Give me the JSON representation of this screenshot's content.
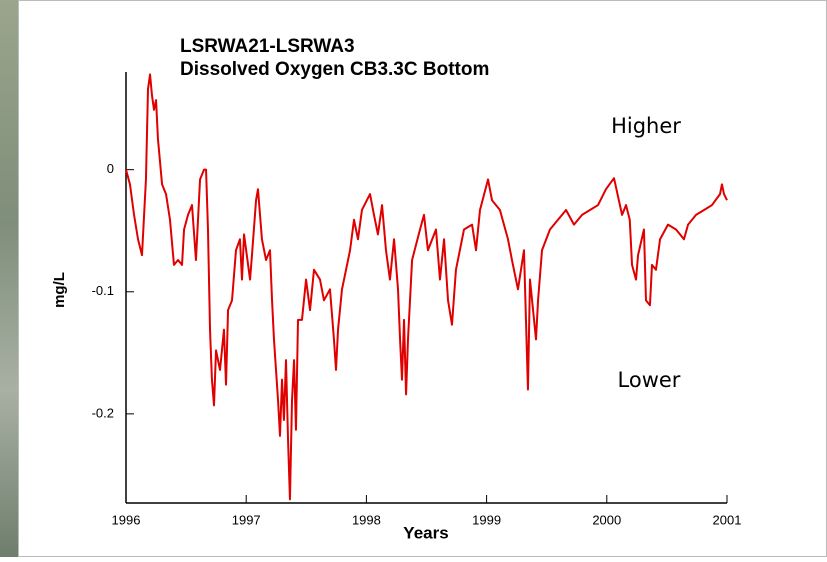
{
  "chart_data": {
    "type": "line",
    "title": "LSRWA21-LSRWA3",
    "subtitle": "Dissolved Oxygen CB3.3C Bottom",
    "xlabel": "Years",
    "ylabel": "mg/L",
    "annotations": [
      "Higher",
      "Lower"
    ],
    "color": "#e00000",
    "xlim": [
      1996,
      2001
    ],
    "xticks": [
      1996,
      1997,
      1998,
      1999,
      2000,
      2001
    ],
    "ylim": [
      -0.273,
      0.08
    ],
    "yticks": [
      -0.2,
      -0.1,
      0
    ],
    "x": [
      1996.0,
      1996.033,
      1996.067,
      1996.1,
      1996.133,
      1996.166,
      1996.183,
      1996.2,
      1996.216,
      1996.233,
      1996.25,
      1996.266,
      1996.3,
      1996.333,
      1996.366,
      1996.399,
      1996.433,
      1996.466,
      1996.483,
      1996.516,
      1996.549,
      1996.582,
      1996.616,
      1996.649,
      1996.666,
      1996.682,
      1996.699,
      1996.715,
      1996.732,
      1996.749,
      1996.782,
      1996.815,
      1996.832,
      1996.849,
      1996.882,
      1996.915,
      1996.948,
      1996.965,
      1996.982,
      1997.032,
      1997.048,
      1997.082,
      1997.098,
      1997.131,
      1997.165,
      1997.198,
      1997.215,
      1997.231,
      1997.248,
      1997.265,
      1997.281,
      1997.298,
      1997.314,
      1997.331,
      1997.348,
      1997.364,
      1997.381,
      1997.398,
      1997.414,
      1997.431,
      1997.464,
      1997.498,
      1997.531,
      1997.564,
      1997.614,
      1997.647,
      1997.697,
      1997.73,
      1997.747,
      1997.764,
      1997.797,
      1997.864,
      1997.897,
      1997.93,
      1997.963,
      1998.03,
      1998.063,
      1998.096,
      1998.13,
      1998.163,
      1998.196,
      1998.23,
      1998.263,
      1998.28,
      1998.296,
      1998.313,
      1998.33,
      1998.346,
      1998.38,
      1998.446,
      1998.479,
      1998.512,
      1998.579,
      1998.612,
      1998.646,
      1998.679,
      1998.712,
      1998.745,
      1998.812,
      1998.879,
      1998.912,
      1998.945,
      1999.012,
      1999.045,
      1999.111,
      1999.178,
      1999.211,
      1999.261,
      1999.311,
      1999.344,
      1999.361,
      1999.411,
      1999.428,
      1999.461,
      1999.527,
      1999.594,
      1999.661,
      1999.727,
      1999.794,
      1999.86,
      1999.927,
      1999.993,
      2000.06,
      2000.127,
      2000.16,
      2000.191,
      2000.21,
      2000.243,
      2000.26,
      2000.309,
      2000.326,
      2000.359,
      2000.376,
      2000.409,
      2000.443,
      2000.509,
      2000.576,
      2000.642,
      2000.676,
      2000.742,
      2000.809,
      2000.875,
      2000.942,
      2000.958,
      2000.975,
      2001.0
    ],
    "values": [
      0,
      -0.012,
      -0.037,
      -0.057,
      -0.07,
      -0.008,
      0.066,
      0.078,
      0.061,
      0.049,
      0.057,
      0.025,
      -0.012,
      -0.02,
      -0.041,
      -0.078,
      -0.074,
      -0.078,
      -0.049,
      -0.037,
      -0.029,
      -0.074,
      -0.008,
      0,
      0,
      -0.049,
      -0.131,
      -0.172,
      -0.193,
      -0.148,
      -0.164,
      -0.131,
      -0.176,
      -0.115,
      -0.107,
      -0.066,
      -0.057,
      -0.09,
      -0.053,
      -0.09,
      -0.07,
      -0.025,
      -0.016,
      -0.057,
      -0.074,
      -0.066,
      -0.107,
      -0.139,
      -0.164,
      -0.189,
      -0.218,
      -0.172,
      -0.205,
      -0.156,
      -0.221,
      -0.27,
      -0.189,
      -0.156,
      -0.213,
      -0.123,
      -0.123,
      -0.09,
      -0.115,
      -0.082,
      -0.09,
      -0.107,
      -0.098,
      -0.139,
      -0.164,
      -0.131,
      -0.098,
      -0.066,
      -0.041,
      -0.057,
      -0.033,
      -0.02,
      -0.037,
      -0.053,
      -0.029,
      -0.066,
      -0.09,
      -0.057,
      -0.098,
      -0.139,
      -0.172,
      -0.123,
      -0.184,
      -0.139,
      -0.074,
      -0.049,
      -0.037,
      -0.066,
      -0.049,
      -0.09,
      -0.057,
      -0.107,
      -0.127,
      -0.082,
      -0.049,
      -0.045,
      -0.066,
      -0.033,
      -0.008,
      -0.025,
      -0.033,
      -0.057,
      -0.074,
      -0.098,
      -0.066,
      -0.18,
      -0.09,
      -0.139,
      -0.107,
      -0.066,
      -0.049,
      -0.041,
      -0.033,
      -0.045,
      -0.037,
      -0.033,
      -0.029,
      -0.016,
      -0.007,
      -0.037,
      -0.029,
      -0.041,
      -0.078,
      -0.09,
      -0.07,
      -0.049,
      -0.107,
      -0.111,
      -0.078,
      -0.082,
      -0.057,
      -0.045,
      -0.049,
      -0.057,
      -0.045,
      -0.037,
      -0.033,
      -0.029,
      -0.02,
      -0.012,
      -0.02,
      -0.025
    ]
  }
}
